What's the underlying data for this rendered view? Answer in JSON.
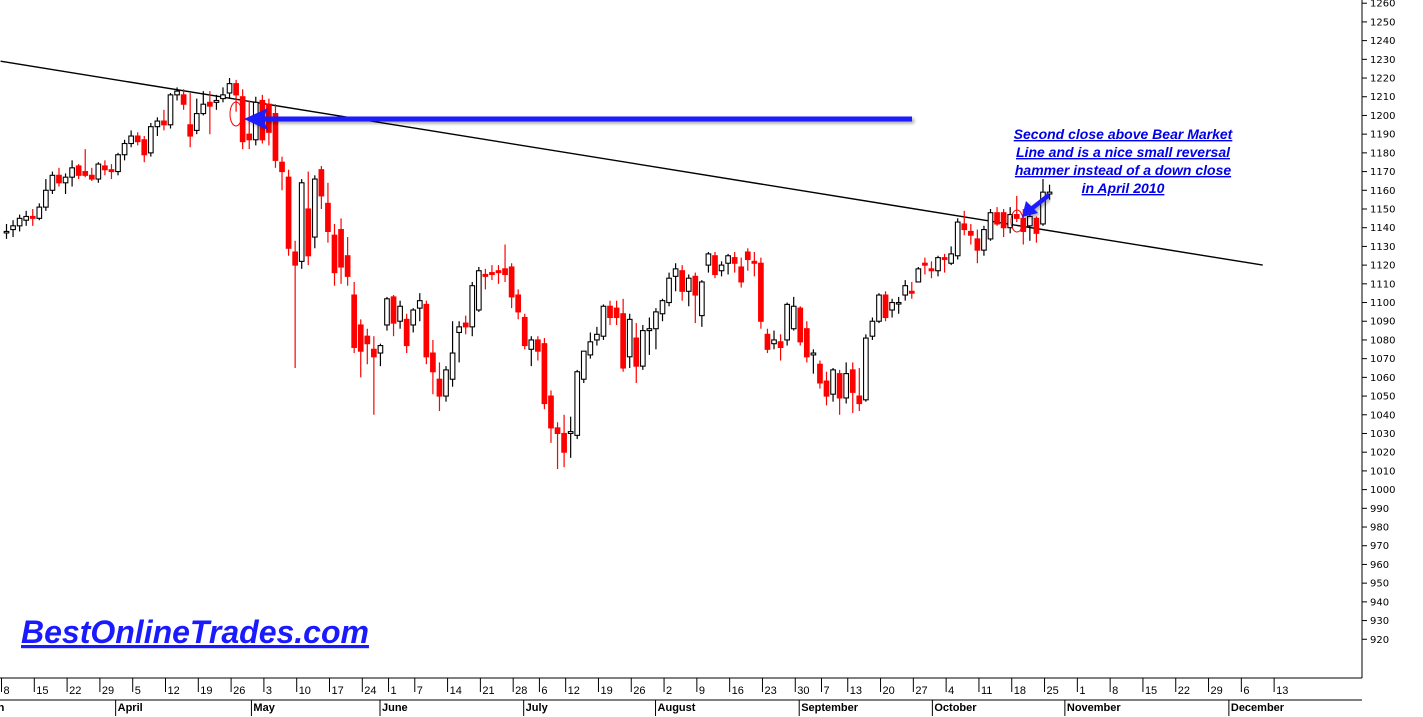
{
  "brand": {
    "text": "BestOnlineTrades.com",
    "color": "#1a1aff"
  },
  "annotation": {
    "lines": [
      "Second close above Bear Market",
      "Line and is a nice small reversal",
      "hammer instead of a down close",
      "in April 2010"
    ],
    "color": "#0000e6"
  },
  "colors": {
    "up": "#000000",
    "down": "#ff0000",
    "arrow": "#0000ff",
    "marker": "#ff0000",
    "trendline": "#000000"
  },
  "chart_data": {
    "type": "candlestick",
    "title": "",
    "xlabel": "",
    "ylabel": "",
    "ylim": [
      915,
      1265
    ],
    "yticks": [
      920,
      930,
      940,
      950,
      960,
      970,
      980,
      990,
      1000,
      1010,
      1020,
      1030,
      1040,
      1050,
      1060,
      1070,
      1080,
      1090,
      1100,
      1110,
      1120,
      1130,
      1140,
      1150,
      1160,
      1170,
      1180,
      1190,
      1200,
      1210,
      1220,
      1230,
      1240,
      1250,
      1260
    ],
    "grid": false,
    "x_axis": {
      "day_ticks": [
        {
          "label": "8",
          "col": 0
        },
        {
          "label": "15",
          "col": 5
        },
        {
          "label": "22",
          "col": 10
        },
        {
          "label": "29",
          "col": 15
        },
        {
          "label": "5",
          "col": 20
        },
        {
          "label": "12",
          "col": 25
        },
        {
          "label": "19",
          "col": 30
        },
        {
          "label": "26",
          "col": 35
        },
        {
          "label": "3",
          "col": 40
        },
        {
          "label": "10",
          "col": 45
        },
        {
          "label": "17",
          "col": 50
        },
        {
          "label": "24",
          "col": 55
        },
        {
          "label": "1",
          "col": 59
        },
        {
          "label": "7",
          "col": 63
        },
        {
          "label": "14",
          "col": 68
        },
        {
          "label": "21",
          "col": 73
        },
        {
          "label": "28",
          "col": 78
        },
        {
          "label": "6",
          "col": 82
        },
        {
          "label": "12",
          "col": 86
        },
        {
          "label": "19",
          "col": 91
        },
        {
          "label": "26",
          "col": 96
        },
        {
          "label": "2",
          "col": 101
        },
        {
          "label": "9",
          "col": 106
        },
        {
          "label": "16",
          "col": 111
        },
        {
          "label": "23",
          "col": 116
        },
        {
          "label": "30",
          "col": 121
        },
        {
          "label": "7",
          "col": 125
        },
        {
          "label": "13",
          "col": 129
        },
        {
          "label": "20",
          "col": 134
        },
        {
          "label": "27",
          "col": 139
        },
        {
          "label": "4",
          "col": 144
        },
        {
          "label": "11",
          "col": 149
        },
        {
          "label": "18",
          "col": 154
        },
        {
          "label": "25",
          "col": 159
        },
        {
          "label": "1",
          "col": 164
        },
        {
          "label": "8",
          "col": 169
        },
        {
          "label": "15",
          "col": 174
        },
        {
          "label": "22",
          "col": 179
        },
        {
          "label": "29",
          "col": 184
        },
        {
          "label": "6",
          "col": 189
        },
        {
          "label": "13",
          "col": 194
        }
      ],
      "months": [
        {
          "label": "h",
          "col": -0.9
        },
        {
          "label": "April",
          "col": 17.4
        },
        {
          "label": "May",
          "col": 38.1
        },
        {
          "label": "June",
          "col": 57.7
        },
        {
          "label": "July",
          "col": 79.6
        },
        {
          "label": "August",
          "col": 99.7
        },
        {
          "label": "September",
          "col": 121.6
        },
        {
          "label": "October",
          "col": 141.9
        },
        {
          "label": "November",
          "col": 162.1
        },
        {
          "label": "December",
          "col": 187.1
        }
      ]
    },
    "trendline": {
      "start": {
        "col": -0.9,
        "value": 1229
      },
      "end": {
        "col": 191.5,
        "value": 1120
      }
    },
    "candles": [
      {
        "o": 1138,
        "h": 1142,
        "l": 1134,
        "c": 1138
      },
      {
        "o": 1139,
        "h": 1144,
        "l": 1135,
        "c": 1141
      },
      {
        "o": 1141,
        "h": 1147,
        "l": 1138,
        "c": 1145
      },
      {
        "o": 1144,
        "h": 1149,
        "l": 1141,
        "c": 1146
      },
      {
        "o": 1146,
        "h": 1150,
        "l": 1141,
        "c": 1145
      },
      {
        "o": 1145,
        "h": 1153,
        "l": 1144,
        "c": 1151
      },
      {
        "o": 1151,
        "h": 1166,
        "l": 1149,
        "c": 1160
      },
      {
        "o": 1160,
        "h": 1170,
        "l": 1158,
        "c": 1168
      },
      {
        "o": 1168,
        "h": 1172,
        "l": 1162,
        "c": 1164
      },
      {
        "o": 1164,
        "h": 1169,
        "l": 1158,
        "c": 1167
      },
      {
        "o": 1167,
        "h": 1176,
        "l": 1162,
        "c": 1172
      },
      {
        "o": 1173,
        "h": 1174,
        "l": 1166,
        "c": 1168
      },
      {
        "o": 1170,
        "h": 1182,
        "l": 1167,
        "c": 1168
      },
      {
        "o": 1168,
        "h": 1172,
        "l": 1165,
        "c": 1166
      },
      {
        "o": 1166,
        "h": 1175,
        "l": 1164,
        "c": 1174
      },
      {
        "o": 1173,
        "h": 1176,
        "l": 1168,
        "c": 1171
      },
      {
        "o": 1171,
        "h": 1174,
        "l": 1166,
        "c": 1170
      },
      {
        "o": 1170,
        "h": 1180,
        "l": 1168,
        "c": 1179
      },
      {
        "o": 1179,
        "h": 1187,
        "l": 1176,
        "c": 1185
      },
      {
        "o": 1185,
        "h": 1192,
        "l": 1183,
        "c": 1189
      },
      {
        "o": 1189,
        "h": 1191,
        "l": 1184,
        "c": 1186
      },
      {
        "o": 1187,
        "h": 1189,
        "l": 1175,
        "c": 1179
      },
      {
        "o": 1180,
        "h": 1196,
        "l": 1178,
        "c": 1194
      },
      {
        "o": 1194,
        "h": 1199,
        "l": 1189,
        "c": 1197
      },
      {
        "o": 1197,
        "h": 1203,
        "l": 1192,
        "c": 1195
      },
      {
        "o": 1195,
        "h": 1212,
        "l": 1193,
        "c": 1211
      },
      {
        "o": 1211,
        "h": 1215,
        "l": 1208,
        "c": 1213
      },
      {
        "o": 1211,
        "h": 1214,
        "l": 1203,
        "c": 1206
      },
      {
        "o": 1195,
        "h": 1212,
        "l": 1183,
        "c": 1189
      },
      {
        "o": 1192,
        "h": 1209,
        "l": 1190,
        "c": 1201
      },
      {
        "o": 1201,
        "h": 1213,
        "l": 1200,
        "c": 1206
      },
      {
        "o": 1207,
        "h": 1213,
        "l": 1190,
        "c": 1205
      },
      {
        "o": 1207,
        "h": 1211,
        "l": 1203,
        "c": 1208
      },
      {
        "o": 1209,
        "h": 1215,
        "l": 1207,
        "c": 1211
      },
      {
        "o": 1212,
        "h": 1220,
        "l": 1209,
        "c": 1217
      },
      {
        "o": 1217,
        "h": 1219,
        "l": 1202,
        "c": 1211
      },
      {
        "o": 1210,
        "h": 1214,
        "l": 1182,
        "c": 1186
      },
      {
        "o": 1190,
        "h": 1208,
        "l": 1182,
        "c": 1187
      },
      {
        "o": 1187,
        "h": 1210,
        "l": 1184,
        "c": 1207
      },
      {
        "o": 1208,
        "h": 1211,
        "l": 1185,
        "c": 1187
      },
      {
        "o": 1206,
        "h": 1209,
        "l": 1184,
        "c": 1191
      },
      {
        "o": 1201,
        "h": 1206,
        "l": 1172,
        "c": 1176
      },
      {
        "o": 1175,
        "h": 1178,
        "l": 1160,
        "c": 1170
      },
      {
        "o": 1167,
        "h": 1171,
        "l": 1125,
        "c": 1129
      },
      {
        "o": 1127,
        "h": 1133,
        "l": 1065,
        "c": 1120
      },
      {
        "o": 1122,
        "h": 1166,
        "l": 1118,
        "c": 1164
      },
      {
        "o": 1150,
        "h": 1170,
        "l": 1120,
        "c": 1125
      },
      {
        "o": 1135,
        "h": 1168,
        "l": 1129,
        "c": 1166
      },
      {
        "o": 1171,
        "h": 1173,
        "l": 1150,
        "c": 1157
      },
      {
        "o": 1153,
        "h": 1164,
        "l": 1132,
        "c": 1138
      },
      {
        "o": 1136,
        "h": 1142,
        "l": 1109,
        "c": 1116
      },
      {
        "o": 1139,
        "h": 1145,
        "l": 1110,
        "c": 1119
      },
      {
        "o": 1125,
        "h": 1135,
        "l": 1109,
        "c": 1114
      },
      {
        "o": 1104,
        "h": 1111,
        "l": 1073,
        "c": 1076
      },
      {
        "o": 1088,
        "h": 1091,
        "l": 1060,
        "c": 1074
      },
      {
        "o": 1082,
        "h": 1086,
        "l": 1067,
        "c": 1078
      },
      {
        "o": 1075,
        "h": 1082,
        "l": 1040,
        "c": 1071
      },
      {
        "o": 1073,
        "h": 1078,
        "l": 1066,
        "c": 1077
      },
      {
        "o": 1088,
        "h": 1103,
        "l": 1085,
        "c": 1102
      },
      {
        "o": 1103,
        "h": 1104,
        "l": 1082,
        "c": 1089
      },
      {
        "o": 1090,
        "h": 1101,
        "l": 1086,
        "c": 1098
      },
      {
        "o": 1091,
        "h": 1094,
        "l": 1073,
        "c": 1077
      },
      {
        "o": 1088,
        "h": 1097,
        "l": 1084,
        "c": 1096
      },
      {
        "o": 1097,
        "h": 1105,
        "l": 1090,
        "c": 1101
      },
      {
        "o": 1099,
        "h": 1101,
        "l": 1067,
        "c": 1071
      },
      {
        "o": 1073,
        "h": 1080,
        "l": 1051,
        "c": 1063
      },
      {
        "o": 1059,
        "h": 1068,
        "l": 1042,
        "c": 1050
      },
      {
        "o": 1050,
        "h": 1066,
        "l": 1047,
        "c": 1064
      },
      {
        "o": 1059,
        "h": 1090,
        "l": 1055,
        "c": 1073
      },
      {
        "o": 1084,
        "h": 1090,
        "l": 1068,
        "c": 1087
      },
      {
        "o": 1089,
        "h": 1093,
        "l": 1083,
        "c": 1087
      },
      {
        "o": 1087,
        "h": 1111,
        "l": 1082,
        "c": 1109
      },
      {
        "o": 1096,
        "h": 1119,
        "l": 1095,
        "c": 1117
      },
      {
        "o": 1115,
        "h": 1118,
        "l": 1107,
        "c": 1114
      },
      {
        "o": 1116,
        "h": 1120,
        "l": 1112,
        "c": 1115
      },
      {
        "o": 1117,
        "h": 1120,
        "l": 1110,
        "c": 1116
      },
      {
        "o": 1118,
        "h": 1131,
        "l": 1111,
        "c": 1115
      },
      {
        "o": 1119,
        "h": 1121,
        "l": 1097,
        "c": 1103
      },
      {
        "o": 1104,
        "h": 1107,
        "l": 1091,
        "c": 1095
      },
      {
        "o": 1092,
        "h": 1094,
        "l": 1075,
        "c": 1077
      },
      {
        "o": 1075,
        "h": 1082,
        "l": 1066,
        "c": 1080
      },
      {
        "o": 1080,
        "h": 1082,
        "l": 1069,
        "c": 1074
      },
      {
        "o": 1078,
        "h": 1081,
        "l": 1043,
        "c": 1046
      },
      {
        "o": 1050,
        "h": 1053,
        "l": 1025,
        "c": 1033
      },
      {
        "o": 1033,
        "h": 1036,
        "l": 1011,
        "c": 1030
      },
      {
        "o": 1030,
        "h": 1040,
        "l": 1012,
        "c": 1020
      },
      {
        "o": 1030,
        "h": 1039,
        "l": 1017,
        "c": 1031
      },
      {
        "o": 1029,
        "h": 1064,
        "l": 1027,
        "c": 1063
      },
      {
        "o": 1059,
        "h": 1074,
        "l": 1057,
        "c": 1074
      },
      {
        "o": 1072,
        "h": 1084,
        "l": 1070,
        "c": 1079
      },
      {
        "o": 1080,
        "h": 1087,
        "l": 1077,
        "c": 1083
      },
      {
        "o": 1082,
        "h": 1099,
        "l": 1080,
        "c": 1098
      },
      {
        "o": 1098,
        "h": 1101,
        "l": 1088,
        "c": 1092
      },
      {
        "o": 1097,
        "h": 1101,
        "l": 1088,
        "c": 1092
      },
      {
        "o": 1094,
        "h": 1102,
        "l": 1063,
        "c": 1065
      },
      {
        "o": 1071,
        "h": 1094,
        "l": 1065,
        "c": 1091
      },
      {
        "o": 1081,
        "h": 1089,
        "l": 1057,
        "c": 1066
      },
      {
        "o": 1066,
        "h": 1088,
        "l": 1064,
        "c": 1085
      },
      {
        "o": 1085,
        "h": 1092,
        "l": 1072,
        "c": 1086
      },
      {
        "o": 1086,
        "h": 1097,
        "l": 1075,
        "c": 1095
      },
      {
        "o": 1094,
        "h": 1102,
        "l": 1090,
        "c": 1101
      },
      {
        "o": 1100,
        "h": 1116,
        "l": 1098,
        "c": 1113
      },
      {
        "o": 1114,
        "h": 1121,
        "l": 1106,
        "c": 1118
      },
      {
        "o": 1117,
        "h": 1120,
        "l": 1101,
        "c": 1106
      },
      {
        "o": 1106,
        "h": 1115,
        "l": 1098,
        "c": 1113
      },
      {
        "o": 1114,
        "h": 1116,
        "l": 1089,
        "c": 1104
      },
      {
        "o": 1093,
        "h": 1112,
        "l": 1087,
        "c": 1111
      },
      {
        "o": 1120,
        "h": 1127,
        "l": 1116,
        "c": 1126
      },
      {
        "o": 1125,
        "h": 1127,
        "l": 1113,
        "c": 1115
      },
      {
        "o": 1117,
        "h": 1122,
        "l": 1114,
        "c": 1120
      },
      {
        "o": 1121,
        "h": 1126,
        "l": 1115,
        "c": 1125
      },
      {
        "o": 1124,
        "h": 1127,
        "l": 1116,
        "c": 1121
      },
      {
        "o": 1119,
        "h": 1124,
        "l": 1108,
        "c": 1111
      },
      {
        "o": 1127,
        "h": 1129,
        "l": 1117,
        "c": 1123
      },
      {
        "o": 1122,
        "h": 1127,
        "l": 1114,
        "c": 1121
      },
      {
        "o": 1121,
        "h": 1124,
        "l": 1086,
        "c": 1090
      },
      {
        "o": 1083,
        "h": 1086,
        "l": 1073,
        "c": 1075
      },
      {
        "o": 1078,
        "h": 1085,
        "l": 1075,
        "c": 1080
      },
      {
        "o": 1079,
        "h": 1083,
        "l": 1069,
        "c": 1076
      },
      {
        "o": 1080,
        "h": 1100,
        "l": 1077,
        "c": 1099
      },
      {
        "o": 1086,
        "h": 1103,
        "l": 1085,
        "c": 1098
      },
      {
        "o": 1097,
        "h": 1098,
        "l": 1077,
        "c": 1079
      },
      {
        "o": 1086,
        "h": 1090,
        "l": 1068,
        "c": 1071
      },
      {
        "o": 1072,
        "h": 1075,
        "l": 1062,
        "c": 1073
      },
      {
        "o": 1067,
        "h": 1069,
        "l": 1054,
        "c": 1057
      },
      {
        "o": 1058,
        "h": 1063,
        "l": 1045,
        "c": 1050
      },
      {
        "o": 1051,
        "h": 1065,
        "l": 1047,
        "c": 1064
      },
      {
        "o": 1062,
        "h": 1064,
        "l": 1040,
        "c": 1049
      },
      {
        "o": 1049,
        "h": 1068,
        "l": 1046,
        "c": 1062
      },
      {
        "o": 1064,
        "h": 1068,
        "l": 1041,
        "c": 1052
      },
      {
        "o": 1050,
        "h": 1065,
        "l": 1042,
        "c": 1046
      },
      {
        "o": 1048,
        "h": 1083,
        "l": 1047,
        "c": 1081
      },
      {
        "o": 1082,
        "h": 1092,
        "l": 1080,
        "c": 1090
      },
      {
        "o": 1090,
        "h": 1105,
        "l": 1089,
        "c": 1104
      },
      {
        "o": 1104,
        "h": 1106,
        "l": 1090,
        "c": 1092
      },
      {
        "o": 1096,
        "h": 1102,
        "l": 1092,
        "c": 1100
      },
      {
        "o": 1100,
        "h": 1103,
        "l": 1094,
        "c": 1100
      },
      {
        "o": 1104,
        "h": 1112,
        "l": 1101,
        "c": 1109
      },
      {
        "o": 1106,
        "h": 1111,
        "l": 1102,
        "c": 1105
      },
      {
        "o": 1111,
        "h": 1119,
        "l": 1111,
        "c": 1118
      },
      {
        "o": 1121,
        "h": 1124,
        "l": 1115,
        "c": 1120
      },
      {
        "o": 1118,
        "h": 1122,
        "l": 1113,
        "c": 1117
      },
      {
        "o": 1117,
        "h": 1125,
        "l": 1114,
        "c": 1124
      },
      {
        "o": 1124,
        "h": 1126,
        "l": 1116,
        "c": 1123
      },
      {
        "o": 1121,
        "h": 1130,
        "l": 1120,
        "c": 1126
      },
      {
        "o": 1125,
        "h": 1145,
        "l": 1123,
        "c": 1143
      },
      {
        "o": 1142,
        "h": 1149,
        "l": 1136,
        "c": 1139
      },
      {
        "o": 1138,
        "h": 1142,
        "l": 1131,
        "c": 1136
      },
      {
        "o": 1134,
        "h": 1139,
        "l": 1121,
        "c": 1128
      },
      {
        "o": 1128,
        "h": 1141,
        "l": 1125,
        "c": 1139
      },
      {
        "o": 1134,
        "h": 1150,
        "l": 1133,
        "c": 1148
      },
      {
        "o": 1148,
        "h": 1151,
        "l": 1141,
        "c": 1142
      },
      {
        "o": 1148,
        "h": 1150,
        "l": 1135,
        "c": 1140
      },
      {
        "o": 1140,
        "h": 1151,
        "l": 1137,
        "c": 1147
      },
      {
        "o": 1147,
        "h": 1157,
        "l": 1143,
        "c": 1145
      },
      {
        "o": 1145,
        "h": 1150,
        "l": 1131,
        "c": 1138
      },
      {
        "o": 1141,
        "h": 1149,
        "l": 1133,
        "c": 1146
      },
      {
        "o": 1145,
        "h": 1146,
        "l": 1132,
        "c": 1137
      },
      {
        "o": 1142,
        "h": 1166,
        "l": 1141,
        "c": 1159
      },
      {
        "o": 1158,
        "h": 1163,
        "l": 1155,
        "c": 1159
      }
    ]
  }
}
